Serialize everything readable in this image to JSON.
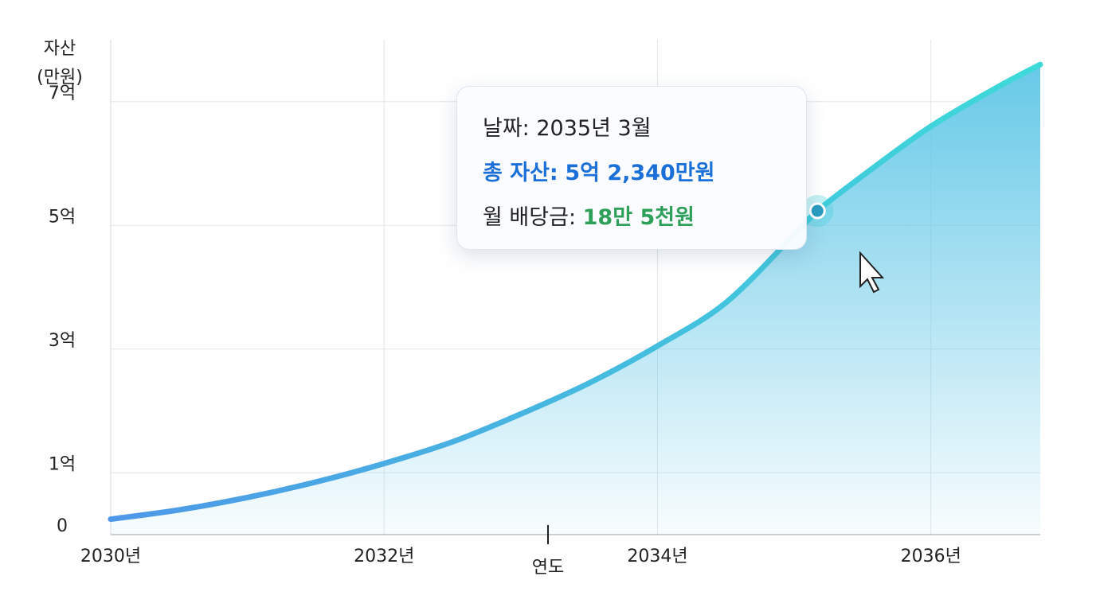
{
  "chart_data": {
    "type": "line",
    "ylabel": [
      "자산",
      "(만원)"
    ],
    "xlabel": "연도",
    "x": [
      2030,
      2030.5,
      2031,
      2031.5,
      2032,
      2032.5,
      2033,
      2033.5,
      2034,
      2034.5,
      2035,
      2035.17,
      2035.5,
      2036,
      2036.5,
      2036.8
    ],
    "series": [
      {
        "name": "총 자산",
        "color": "#3ccfdc",
        "values": [
          2500,
          4000,
          6000,
          8500,
          11500,
          15000,
          19500,
          24500,
          30500,
          37500,
          48500,
          52340,
          58000,
          66000,
          72500,
          76000
        ]
      }
    ],
    "xlim": [
      2030,
      2036.8
    ],
    "xticks": [
      {
        "value": 2030,
        "label": "2030년"
      },
      {
        "value": 2032,
        "label": "2032년"
      },
      {
        "value": 2034,
        "label": "2034년"
      },
      {
        "value": 2036,
        "label": "2036년"
      }
    ],
    "ylim": [
      0,
      80000
    ],
    "yticks": [
      0,
      {
        "value": 10000,
        "label": "1억"
      },
      {
        "value": 30000,
        "label": "3억"
      },
      {
        "value": 50000,
        "label": "5억"
      },
      {
        "value": 70000,
        "label": "7억"
      }
    ],
    "grid": true,
    "tooltip": {
      "index": 11,
      "lines": [
        {
          "label": "날짜:",
          "value": "2035년 3월"
        },
        {
          "label": "총 자산:",
          "value": "5억 2,340만원"
        },
        {
          "label": "월 배당금:",
          "value": "18만 5천원"
        }
      ]
    }
  }
}
